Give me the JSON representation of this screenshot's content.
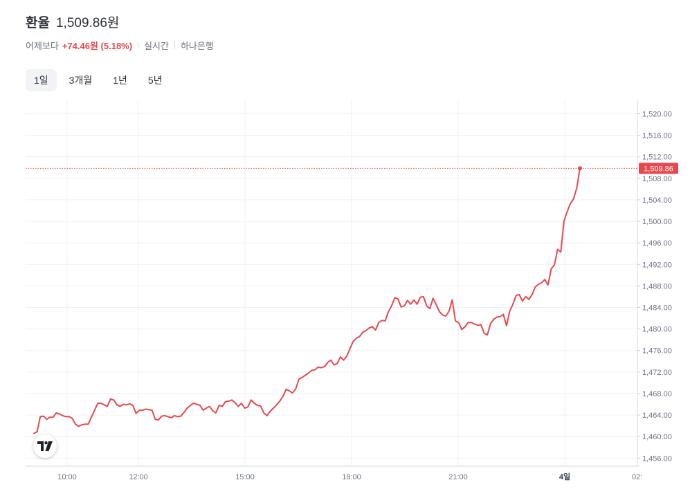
{
  "header": {
    "title": "환율",
    "value": "1,509.86원",
    "compare_label": "어제보다",
    "change": "+74.46원 (5.18%)",
    "mode": "실시간",
    "source": "하나은행"
  },
  "tabs": [
    {
      "label": "1일",
      "active": true
    },
    {
      "label": "3개월",
      "active": false
    },
    {
      "label": "1년",
      "active": false
    },
    {
      "label": "5년",
      "active": false
    }
  ],
  "colors": {
    "line": "#e5484d",
    "price_tag_bg": "#e5484d",
    "grid": "#eef0f3",
    "axis_text": "#6b7280"
  },
  "logo_icon": "tradingview-logo-icon",
  "chart_data": {
    "type": "line",
    "title": "",
    "xlabel": "",
    "ylabel": "",
    "x_ticks": [
      "10:00",
      "12:00",
      "15:00",
      "18:00",
      "21:00",
      "4일",
      "02:"
    ],
    "y_ticks": [
      "1,520.00",
      "1,516.00",
      "1,512.00",
      "1,508.00",
      "1,504.00",
      "1,500.00",
      "1,496.00",
      "1,492.00",
      "1,488.00",
      "1,484.00",
      "1,480.00",
      "1,476.00",
      "1,472.00",
      "1,468.00",
      "1,464.00",
      "1,460.00",
      "1,456.00"
    ],
    "ylim": [
      1454.5,
      1522.5
    ],
    "last_price": 1509.86,
    "last_price_label": "1,509.86",
    "grid": true,
    "series": [
      {
        "values": [
          1460.6,
          1460.9,
          1463.7,
          1463.8,
          1463.2,
          1463.6,
          1463.6,
          1464.4,
          1464.2,
          1463.9,
          1463.7,
          1463.7,
          1463.4,
          1462.3,
          1461.9,
          1462.2,
          1462.3,
          1462.3,
          1463.6,
          1464.9,
          1466.2,
          1466.2,
          1465.9,
          1465.6,
          1467.0,
          1466.8,
          1465.9,
          1465.6,
          1466.0,
          1465.9,
          1466.1,
          1465.8,
          1464.3,
          1464.9,
          1464.9,
          1465.1,
          1465.0,
          1464.9,
          1463.2,
          1463.1,
          1463.8,
          1463.9,
          1463.7,
          1463.5,
          1463.9,
          1463.7,
          1463.8,
          1464.5,
          1465.3,
          1465.8,
          1466.2,
          1466.0,
          1465.8,
          1464.9,
          1465.3,
          1465.6,
          1464.8,
          1464.4,
          1465.8,
          1465.6,
          1466.5,
          1466.6,
          1466.8,
          1466.3,
          1465.6,
          1466.2,
          1465.3,
          1465.5,
          1466.8,
          1466.2,
          1465.8,
          1465.7,
          1464.4,
          1463.9,
          1464.7,
          1465.3,
          1465.9,
          1466.6,
          1467.5,
          1468.8,
          1468.5,
          1468.1,
          1468.9,
          1470.7,
          1471.0,
          1471.4,
          1471.8,
          1472.3,
          1472.4,
          1472.9,
          1472.8,
          1473.0,
          1473.8,
          1474.2,
          1473.3,
          1473.6,
          1474.8,
          1474.2,
          1475.0,
          1476.4,
          1477.7,
          1478.3,
          1478.6,
          1479.4,
          1479.7,
          1480.2,
          1480.4,
          1479.8,
          1481.2,
          1481.6,
          1481.5,
          1483.2,
          1484.3,
          1485.8,
          1485.6,
          1484.1,
          1484.3,
          1485.3,
          1484.6,
          1485.4,
          1484.6,
          1485.9,
          1486.0,
          1484.3,
          1483.8,
          1485.7,
          1484.5,
          1483.2,
          1482.6,
          1482.4,
          1483.3,
          1485.4,
          1481.5,
          1481.2,
          1479.9,
          1480.4,
          1481.2,
          1481.2,
          1480.9,
          1480.7,
          1480.8,
          1479.2,
          1478.9,
          1481.0,
          1481.8,
          1482.2,
          1482.3,
          1482.7,
          1480.6,
          1483.3,
          1484.6,
          1486.2,
          1486.4,
          1485.2,
          1486.0,
          1485.5,
          1486.4,
          1487.8,
          1488.3,
          1488.6,
          1489.2,
          1488.2,
          1491.2,
          1491.9,
          1494.8,
          1494.3,
          1500.0,
          1501.8,
          1503.3,
          1504.2,
          1506.2,
          1509.86
        ]
      }
    ]
  }
}
